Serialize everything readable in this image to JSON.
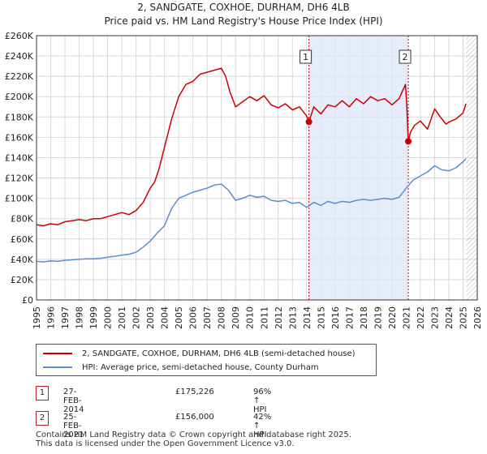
{
  "chart_data": {
    "type": "line",
    "title": "2, SANDGATE, COXHOE, DURHAM, DH6 4LB",
    "subtitle": "Price paid vs. HM Land Registry's House Price Index (HPI)",
    "xlim": [
      1995,
      2026
    ],
    "ylim": [
      0,
      260000
    ],
    "y_ticks": [
      0,
      20000,
      40000,
      60000,
      80000,
      100000,
      120000,
      140000,
      160000,
      180000,
      200000,
      220000,
      240000,
      260000
    ],
    "y_tick_labels": [
      "£0",
      "£20K",
      "£40K",
      "£60K",
      "£80K",
      "£100K",
      "£120K",
      "£140K",
      "£160K",
      "£180K",
      "£200K",
      "£220K",
      "£240K",
      "£260K"
    ],
    "x_ticks": [
      1995,
      1996,
      1997,
      1998,
      1999,
      2000,
      2001,
      2002,
      2003,
      2004,
      2005,
      2006,
      2007,
      2008,
      2009,
      2010,
      2011,
      2012,
      2013,
      2014,
      2015,
      2016,
      2017,
      2018,
      2019,
      2020,
      2021,
      2022,
      2023,
      2024,
      2025,
      2026
    ],
    "x_tick_labels": [
      "1995",
      "1996",
      "1997",
      "1998",
      "1999",
      "2000",
      "2001",
      "2002",
      "2003",
      "2004",
      "2005",
      "2006",
      "2007",
      "2008",
      "2009",
      "2010",
      "2011",
      "2012",
      "2013",
      "2014",
      "2015",
      "2016",
      "2017",
      "2018",
      "2019",
      "2020",
      "2021",
      "2022",
      "2023",
      "2024",
      "2025",
      "2026"
    ],
    "shaded_range": [
      2014.16,
      2021.15
    ],
    "future_hatch_from": 2025.2,
    "series": [
      {
        "name": "2, SANDGATE, COXHOE, DURHAM, DH6 4LB (semi-detached house)",
        "color": "#cc0000",
        "x": [
          1995,
          1995.5,
          1996,
          1996.5,
          1997,
          1997.5,
          1998,
          1998.5,
          1999,
          1999.5,
          2000,
          2000.5,
          2001,
          2001.5,
          2002,
          2002.5,
          2003,
          2003.3,
          2003.6,
          2004,
          2004.5,
          2005,
          2005.5,
          2006,
          2006.5,
          2007,
          2007.5,
          2008,
          2008.3,
          2008.6,
          2009,
          2009.5,
          2010,
          2010.5,
          2011,
          2011.5,
          2012,
          2012.5,
          2013,
          2013.5,
          2014,
          2014.16,
          2014.5,
          2015,
          2015.5,
          2016,
          2016.5,
          2017,
          2017.5,
          2018,
          2018.5,
          2019,
          2019.5,
          2020,
          2020.5,
          2020.95,
          2021.05,
          2021.15,
          2021.3,
          2021.6,
          2022,
          2022.5,
          2023,
          2023.4,
          2023.8,
          2024,
          2024.5,
          2025,
          2025.2
        ],
        "values": [
          74000,
          73000,
          75000,
          74000,
          77000,
          78000,
          79000,
          78000,
          80000,
          80000,
          82000,
          84000,
          86000,
          84000,
          88000,
          96000,
          110000,
          116000,
          128000,
          150000,
          178000,
          200000,
          212000,
          215000,
          222000,
          224000,
          226000,
          228000,
          220000,
          205000,
          190000,
          195000,
          200000,
          196000,
          201000,
          192000,
          189000,
          193000,
          187000,
          190000,
          181000,
          175226,
          190000,
          183000,
          192000,
          190000,
          196000,
          190000,
          198000,
          193000,
          200000,
          196000,
          198000,
          192000,
          198000,
          212000,
          190000,
          156000,
          165000,
          172000,
          176000,
          168000,
          188000,
          180000,
          173000,
          175000,
          178000,
          184000,
          193000
        ]
      },
      {
        "name": "HPI: Average price, semi-detached house, County Durham",
        "color": "#5b8fc9",
        "x": [
          1995,
          1995.5,
          1996,
          1996.5,
          1997,
          1997.5,
          1998,
          1998.5,
          1999,
          1999.5,
          2000,
          2000.5,
          2001,
          2001.5,
          2002,
          2002.5,
          2003,
          2003.5,
          2004,
          2004.5,
          2005,
          2005.5,
          2006,
          2006.5,
          2007,
          2007.5,
          2008,
          2008.5,
          2009,
          2009.5,
          2010,
          2010.5,
          2011,
          2011.5,
          2012,
          2012.5,
          2013,
          2013.5,
          2014,
          2014.5,
          2015,
          2015.5,
          2016,
          2016.5,
          2017,
          2017.5,
          2018,
          2018.5,
          2019,
          2019.5,
          2020,
          2020.5,
          2021,
          2021.5,
          2022,
          2022.5,
          2023,
          2023.5,
          2024,
          2024.5,
          2025,
          2025.2
        ],
        "values": [
          38000,
          37500,
          38500,
          38000,
          39000,
          39500,
          40000,
          40500,
          40500,
          41000,
          42000,
          43000,
          44000,
          45000,
          47000,
          52000,
          58000,
          66000,
          73000,
          90000,
          100000,
          103000,
          106000,
          108000,
          110000,
          113000,
          114000,
          108000,
          98000,
          100000,
          103000,
          101000,
          102000,
          98000,
          97000,
          98000,
          95000,
          96000,
          91000,
          96000,
          93000,
          97000,
          95000,
          97000,
          96000,
          98000,
          99000,
          98000,
          99000,
          100000,
          99000,
          101000,
          110000,
          118000,
          122000,
          126000,
          132000,
          128000,
          127000,
          130000,
          136000,
          139000
        ]
      }
    ],
    "annotations": [
      {
        "label": "1",
        "x": 2014.16,
        "value": 175226
      },
      {
        "label": "2",
        "x": 2021.15,
        "value": 156000
      }
    ]
  },
  "legend": {
    "property_label": "2, SANDGATE, COXHOE, DURHAM, DH6 4LB (semi-detached house)",
    "hpi_label": "HPI: Average price, semi-detached house, County Durham"
  },
  "sales": [
    {
      "num": "1",
      "date": "27-FEB-2014",
      "price": "£175,226",
      "hpi": "96% ↑ HPI"
    },
    {
      "num": "2",
      "date": "25-FEB-2021",
      "price": "£156,000",
      "hpi": "42% ↑ HPI"
    }
  ],
  "footer": {
    "line1": "Contains HM Land Registry data © Crown copyright and database right 2025.",
    "line2": "This data is licensed under the Open Government Licence v3.0."
  }
}
